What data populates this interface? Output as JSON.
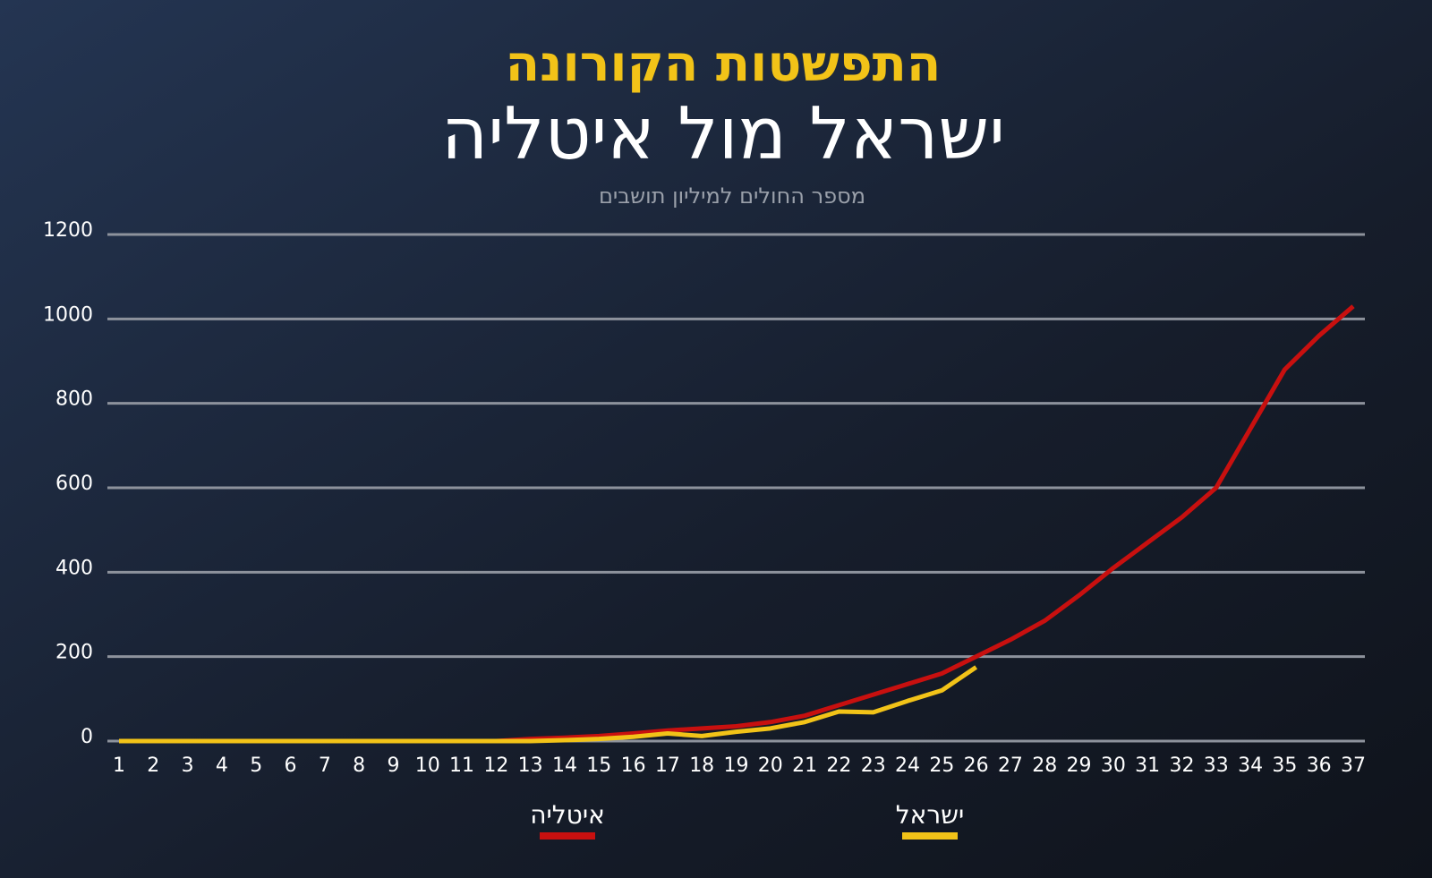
{
  "chart_data": {
    "type": "line",
    "title": "התפשטות הקורונה",
    "subtitle": "ישראל מול איטליה",
    "y_label": "מספר החולים למיליון תושבים",
    "categories": [
      1,
      2,
      3,
      4,
      5,
      6,
      7,
      8,
      9,
      10,
      11,
      12,
      13,
      14,
      15,
      16,
      17,
      18,
      19,
      20,
      21,
      22,
      23,
      24,
      25,
      26,
      27,
      28,
      29,
      30,
      31,
      32,
      33,
      34,
      35,
      36,
      37
    ],
    "series": [
      {
        "name": "איטליה",
        "color": "#c8100f",
        "values": [
          0,
          0,
          0,
          0,
          0,
          0,
          0,
          0,
          0,
          0,
          0,
          0,
          5,
          8,
          12,
          18,
          25,
          30,
          35,
          45,
          60,
          85,
          110,
          135,
          160,
          200,
          240,
          285,
          345,
          410,
          470,
          530,
          600,
          740,
          880,
          960,
          1030
        ]
      },
      {
        "name": "ישראל",
        "color": "#f2c318",
        "values": [
          0,
          0,
          0,
          0,
          0,
          0,
          0,
          0,
          0,
          0,
          0,
          0,
          0,
          2,
          5,
          10,
          18,
          12,
          22,
          30,
          45,
          70,
          68,
          95,
          120,
          175,
          null,
          null,
          null,
          null,
          null,
          null,
          null,
          null,
          null,
          null,
          null
        ]
      }
    ],
    "ylim": [
      0,
      1200
    ],
    "yticks": [
      0,
      200,
      400,
      600,
      800,
      1000,
      1200
    ],
    "grid": true
  }
}
